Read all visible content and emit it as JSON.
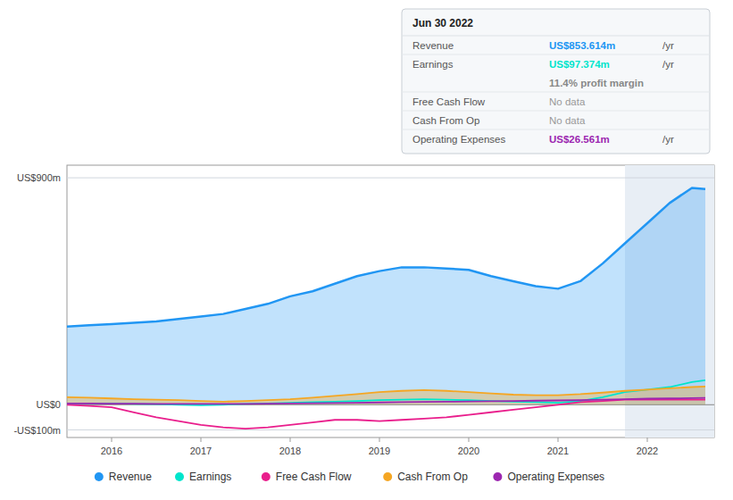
{
  "chart_data": {
    "type": "line",
    "x": [
      2015.5,
      2015.75,
      2016.0,
      2016.25,
      2016.5,
      2016.75,
      2017.0,
      2017.25,
      2017.5,
      2017.75,
      2018.0,
      2018.25,
      2018.5,
      2018.75,
      2019.0,
      2019.25,
      2019.5,
      2019.75,
      2020.0,
      2020.25,
      2020.5,
      2020.75,
      2021.0,
      2021.25,
      2021.5,
      2021.75,
      2022.0,
      2022.25,
      2022.5,
      2022.65
    ],
    "series": [
      {
        "name": "Revenue",
        "color": "#2196f3",
        "type": "area",
        "values": [
          310,
          315,
          320,
          325,
          330,
          340,
          350,
          360,
          380,
          400,
          430,
          450,
          480,
          510,
          530,
          545,
          545,
          540,
          535,
          510,
          490,
          470,
          460,
          490,
          560,
          640,
          720,
          800,
          860,
          855
        ]
      },
      {
        "name": "Earnings",
        "color": "#00e5cc",
        "type": "line",
        "values": [
          5,
          5,
          5,
          3,
          2,
          0,
          -2,
          0,
          3,
          5,
          8,
          10,
          12,
          15,
          18,
          20,
          22,
          20,
          18,
          15,
          12,
          10,
          8,
          15,
          30,
          50,
          60,
          70,
          90,
          97
        ]
      },
      {
        "name": "Free Cash Flow",
        "color": "#e91e8c",
        "type": "line",
        "values": [
          0,
          -5,
          -10,
          -30,
          -50,
          -65,
          -80,
          -90,
          -95,
          -90,
          -80,
          -70,
          -60,
          -60,
          -65,
          -60,
          -55,
          -50,
          -40,
          -30,
          -20,
          -10,
          0,
          10,
          15,
          20,
          20,
          20,
          20,
          20
        ]
      },
      {
        "name": "Cash From Op",
        "color": "#f5a623",
        "type": "area",
        "values": [
          30,
          28,
          25,
          22,
          20,
          18,
          15,
          12,
          15,
          18,
          22,
          28,
          35,
          42,
          50,
          55,
          58,
          55,
          50,
          45,
          40,
          38,
          38,
          42,
          48,
          55,
          60,
          65,
          70,
          72
        ]
      },
      {
        "name": "Operating Expenses",
        "color": "#9c27b0",
        "type": "line",
        "values": [
          5,
          5,
          4,
          4,
          3,
          3,
          3,
          3,
          3,
          4,
          5,
          6,
          7,
          8,
          9,
          10,
          11,
          12,
          13,
          14,
          15,
          16,
          17,
          18,
          20,
          22,
          24,
          25,
          26,
          27
        ]
      }
    ],
    "xlim": [
      2015.5,
      2022.75
    ],
    "xticks": [
      2016,
      2017,
      2018,
      2019,
      2020,
      2021,
      2022
    ],
    "ylim": [
      -130,
      950
    ],
    "yticks": [
      {
        "value": -100,
        "label": "-US$100m"
      },
      {
        "value": 0,
        "label": "US$0"
      },
      {
        "value": 900,
        "label": "US$900m"
      }
    ],
    "grid": true,
    "legend": "bottom",
    "highlight_xlim": [
      2021.75,
      2022.75
    ],
    "tooltip": {
      "title": "Jun 30 2022",
      "rows": [
        {
          "label": "Revenue",
          "value": "US$853.614m",
          "unit": "/yr",
          "color": "#2196f3"
        },
        {
          "label": "Earnings",
          "value": "US$97.374m",
          "unit": "/yr",
          "color": "#00e5cc"
        },
        {
          "value": "11.4% profit margin",
          "color": "#dddddd"
        },
        {
          "label": "Free Cash Flow",
          "value": "No data"
        },
        {
          "label": "Cash From Op",
          "value": "No data"
        },
        {
          "label": "Operating Expenses",
          "value": "US$26.561m",
          "unit": "/yr",
          "color": "#9c27b0"
        }
      ]
    }
  }
}
